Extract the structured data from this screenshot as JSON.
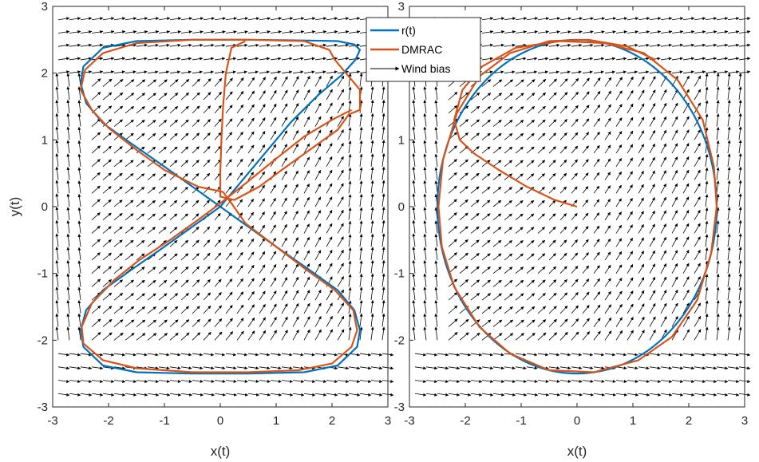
{
  "chart_data": [
    {
      "type": "line",
      "title": "",
      "xlabel": "x(t)",
      "ylabel": "y(t)",
      "xlim": [
        -3,
        3
      ],
      "ylim": [
        -3,
        3
      ],
      "x_ticks": [
        "-3",
        "-2",
        "-1",
        "0",
        "1",
        "2",
        "3"
      ],
      "y_ticks": [
        "3",
        "2",
        "1",
        "0",
        "-1",
        "-2",
        "-3"
      ],
      "background": "wind bias vector field (arrows pointing mostly toward +x, +y)",
      "series": [
        {
          "name": "r(t)",
          "color": "#0072BD",
          "points": [
            [
              0,
              0
            ],
            [
              0.68,
              0.68
            ],
            [
              1.27,
              1.27
            ],
            [
              1.75,
              1.67
            ],
            [
              2.17,
              1.97
            ],
            [
              2.42,
              2.2
            ],
            [
              2.5,
              2.35
            ],
            [
              2.4,
              2.43
            ],
            [
              2.1,
              2.48
            ],
            [
              1.5,
              2.49
            ],
            [
              0.5,
              2.5
            ],
            [
              -0.5,
              2.5
            ],
            [
              -1.5,
              2.48
            ],
            [
              -2.1,
              2.38
            ],
            [
              -2.45,
              2.1
            ],
            [
              -2.5,
              1.85
            ],
            [
              -2.4,
              1.55
            ],
            [
              -2.1,
              1.25
            ],
            [
              -1.6,
              0.95
            ],
            [
              -1.0,
              0.6
            ],
            [
              -0.5,
              0.3
            ],
            [
              0,
              0
            ],
            [
              0.5,
              -0.3
            ],
            [
              1.0,
              -0.6
            ],
            [
              1.6,
              -0.95
            ],
            [
              2.1,
              -1.25
            ],
            [
              2.4,
              -1.55
            ],
            [
              2.5,
              -1.85
            ],
            [
              2.45,
              -2.1
            ],
            [
              2.1,
              -2.38
            ],
            [
              1.5,
              -2.48
            ],
            [
              0.5,
              -2.5
            ],
            [
              -0.5,
              -2.5
            ],
            [
              -1.5,
              -2.48
            ],
            [
              -2.1,
              -2.38
            ],
            [
              -2.45,
              -2.1
            ],
            [
              -2.5,
              -1.85
            ],
            [
              -2.4,
              -1.55
            ],
            [
              -2.1,
              -1.25
            ],
            [
              -1.6,
              -0.95
            ],
            [
              -1.0,
              -0.6
            ],
            [
              -0.5,
              -0.3
            ],
            [
              0,
              0
            ]
          ]
        },
        {
          "name": "DMRAC",
          "color": "#D95319",
          "points": [
            [
              0.45,
              2.48
            ],
            [
              0.2,
              2.38
            ],
            [
              0.1,
              2.0
            ],
            [
              0.05,
              1.5
            ],
            [
              0.02,
              1.0
            ],
            [
              0.0,
              0.5
            ],
            [
              0.0,
              0.15
            ],
            [
              0.25,
              0.1
            ],
            [
              0.7,
              0.3
            ],
            [
              1.1,
              0.55
            ],
            [
              1.6,
              0.85
            ],
            [
              2.1,
              1.15
            ],
            [
              2.3,
              1.38
            ],
            [
              2.5,
              1.45
            ],
            [
              2.5,
              1.75
            ],
            [
              2.3,
              1.95
            ],
            [
              2.05,
              2.2
            ],
            [
              1.95,
              2.35
            ],
            [
              1.5,
              2.48
            ],
            [
              0.5,
              2.5
            ],
            [
              -0.5,
              2.5
            ],
            [
              -1.5,
              2.45
            ],
            [
              -2.1,
              2.3
            ],
            [
              -2.42,
              2.05
            ],
            [
              -2.5,
              1.75
            ],
            [
              -2.3,
              1.45
            ],
            [
              -2.0,
              1.18
            ],
            [
              -1.5,
              0.85
            ],
            [
              -1.0,
              0.55
            ],
            [
              -0.4,
              0.3
            ],
            [
              0.05,
              0.22
            ],
            [
              0.2,
              0.05
            ],
            [
              0.45,
              -0.25
            ],
            [
              1.0,
              -0.6
            ],
            [
              1.55,
              -0.95
            ],
            [
              2.05,
              -1.25
            ],
            [
              2.38,
              -1.55
            ],
            [
              2.45,
              -1.85
            ],
            [
              2.35,
              -2.1
            ],
            [
              2.0,
              -2.35
            ],
            [
              1.4,
              -2.45
            ],
            [
              0.5,
              -2.48
            ],
            [
              -0.5,
              -2.48
            ],
            [
              -1.5,
              -2.42
            ],
            [
              -2.1,
              -2.3
            ],
            [
              -2.45,
              -2.05
            ],
            [
              -2.48,
              -1.8
            ],
            [
              -2.3,
              -1.45
            ],
            [
              -1.9,
              -1.1
            ],
            [
              -1.45,
              -0.8
            ],
            [
              -0.9,
              -0.5
            ],
            [
              -0.4,
              -0.2
            ],
            [
              0.0,
              0.05
            ],
            [
              0.5,
              0.38
            ],
            [
              1.0,
              0.72
            ],
            [
              1.5,
              1.05
            ],
            [
              2.0,
              1.3
            ],
            [
              2.35,
              1.45
            ]
          ]
        }
      ]
    },
    {
      "type": "line",
      "title": "",
      "xlabel": "x(t)",
      "ylabel": "",
      "xlim": [
        -3,
        3
      ],
      "ylim": [
        -3,
        3
      ],
      "x_ticks": [
        "-3",
        "-2",
        "-1",
        "0",
        "1",
        "2",
        "3"
      ],
      "y_ticks": [
        "3",
        "2",
        "1",
        "0",
        "-1",
        "-2",
        "-3"
      ],
      "legend": {
        "placement": "top-left",
        "entries": [
          "r(t)",
          "DMRAC",
          "Wind bias"
        ]
      },
      "series": [
        {
          "name": "r(t)",
          "color": "#0072BD",
          "shape": "ellipse",
          "center": [
            0,
            0
          ],
          "radius_x": 2.5,
          "radius_y": 2.5
        },
        {
          "name": "DMRAC",
          "color": "#D95319",
          "points": [
            [
              0,
              0
            ],
            [
              -0.4,
              0.1
            ],
            [
              -0.9,
              0.3
            ],
            [
              -1.4,
              0.55
            ],
            [
              -1.85,
              0.8
            ],
            [
              -2.1,
              1.0
            ],
            [
              -2.2,
              1.3
            ],
            [
              -2.05,
              1.75
            ],
            [
              -1.7,
              2.1
            ],
            [
              -1.1,
              2.38
            ],
            [
              -0.3,
              2.48
            ],
            [
              0.5,
              2.45
            ],
            [
              1.2,
              2.3
            ],
            [
              1.8,
              1.9
            ],
            [
              2.25,
              1.3
            ],
            [
              2.45,
              0.6
            ],
            [
              2.5,
              0.0
            ],
            [
              2.4,
              -0.7
            ],
            [
              2.15,
              -1.4
            ],
            [
              1.7,
              -1.95
            ],
            [
              1.1,
              -2.3
            ],
            [
              0.3,
              -2.48
            ],
            [
              -0.5,
              -2.45
            ],
            [
              -1.2,
              -2.2
            ],
            [
              -1.75,
              -1.8
            ],
            [
              -2.2,
              -1.2
            ],
            [
              -2.42,
              -0.6
            ],
            [
              -2.48,
              0.0
            ],
            [
              -2.4,
              0.7
            ],
            [
              -2.15,
              1.4
            ],
            [
              -1.75,
              1.95
            ],
            [
              -1.2,
              2.3
            ],
            [
              -0.5,
              2.48
            ],
            [
              0.2,
              2.5
            ],
            [
              0.9,
              2.4
            ],
            [
              1.4,
              2.2
            ]
          ]
        }
      ]
    }
  ],
  "colors": {
    "ref": "#0072BD",
    "dmrac": "#D95319",
    "arrow": "#000000",
    "axis": "#262626"
  }
}
